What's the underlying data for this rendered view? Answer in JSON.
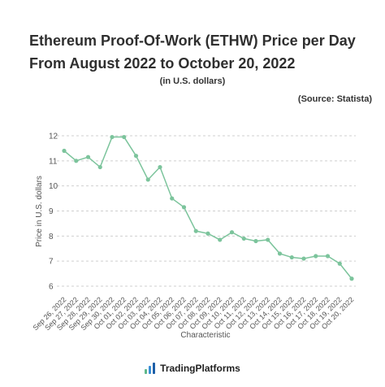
{
  "chart_data": {
    "type": "line",
    "title": "Ethereum Proof-Of-Work (ETHW) Price per Day From August 2022 to October 20, 2022",
    "subtitle": "(in U.S. dollars)",
    "source": "(Source: Statista)",
    "xlabel": "Characteristic",
    "ylabel": "Price in U.S. dollars",
    "ylim": [
      6,
      12
    ],
    "yticks": [
      6,
      7,
      8,
      9,
      10,
      11,
      12
    ],
    "grid": "horizontal-dashed",
    "legend": "none",
    "line_color": "#7cc49c",
    "categories": [
      "Sep 26, 2022",
      "Sep 27, 2022",
      "Sep 28, 2022",
      "Sep 29, 2022",
      "Sep 30, 2022",
      "Oct 01, 2022",
      "Oct 02, 2022",
      "Oct 03, 2022",
      "Oct 04, 2022",
      "Oct 05, 2022",
      "Oct 06, 2022",
      "Oct 07, 2022",
      "Oct 08, 2022",
      "Oct 09, 2022",
      "Oct 10, 2022",
      "Oct 11, 2022",
      "Oct 12, 2022",
      "Oct 13, 2022",
      "Oct 14, 2022",
      "Oct 15, 2022",
      "Oct 16, 2022",
      "Oct 17, 2022",
      "Oct 18, 2022",
      "Oct 19, 2022",
      "Oct 20, 2022"
    ],
    "values": [
      11.4,
      11.0,
      11.15,
      10.75,
      11.95,
      11.95,
      11.2,
      10.25,
      10.75,
      9.5,
      9.15,
      8.2,
      8.1,
      7.85,
      8.15,
      7.9,
      7.8,
      7.85,
      7.3,
      7.15,
      7.1,
      7.2,
      7.2,
      6.9,
      6.3
    ]
  },
  "footer": {
    "brand": "TradingPlatforms",
    "logo_icon": "bar-chart-logo-icon"
  }
}
